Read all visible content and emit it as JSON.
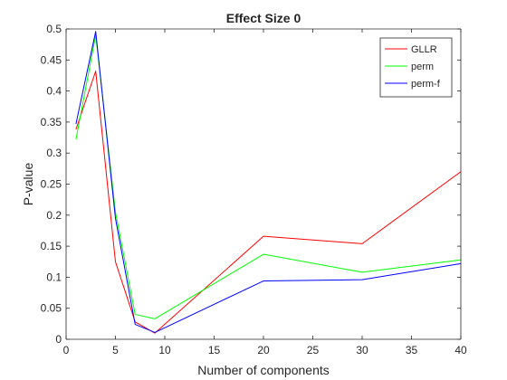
{
  "chart_data": {
    "type": "line",
    "title": "Effect Size 0",
    "xlabel": "Number of components",
    "ylabel": "P-value",
    "xlim": [
      0,
      40
    ],
    "ylim": [
      0,
      0.5
    ],
    "xticks": [
      0,
      5,
      10,
      15,
      20,
      25,
      30,
      35,
      40
    ],
    "xtick_labels": [
      "0",
      "5",
      "10",
      "15",
      "20",
      "25",
      "30",
      "35",
      "40"
    ],
    "yticks": [
      0,
      0.05,
      0.1,
      0.15,
      0.2,
      0.25,
      0.3,
      0.35,
      0.4,
      0.45,
      0.5
    ],
    "ytick_labels": [
      "0",
      "0.05",
      "0.1",
      "0.15",
      "0.2",
      "0.25",
      "0.3",
      "0.35",
      "0.4",
      "0.45",
      "0.5"
    ],
    "grid": false,
    "legend_position": "top-right",
    "x": [
      1,
      3,
      5,
      7,
      9,
      20,
      30,
      40
    ],
    "series": [
      {
        "name": "GLLR",
        "color": "#ff0000",
        "values": [
          0.338,
          0.432,
          0.125,
          0.028,
          0.01,
          0.166,
          0.154,
          0.27
        ]
      },
      {
        "name": "perm",
        "color": "#00ff00",
        "values": [
          0.322,
          0.49,
          0.205,
          0.04,
          0.033,
          0.137,
          0.108,
          0.128
        ]
      },
      {
        "name": "perm-f",
        "color": "#0000ff",
        "values": [
          0.347,
          0.496,
          0.195,
          0.024,
          0.011,
          0.094,
          0.096,
          0.122
        ]
      }
    ]
  }
}
